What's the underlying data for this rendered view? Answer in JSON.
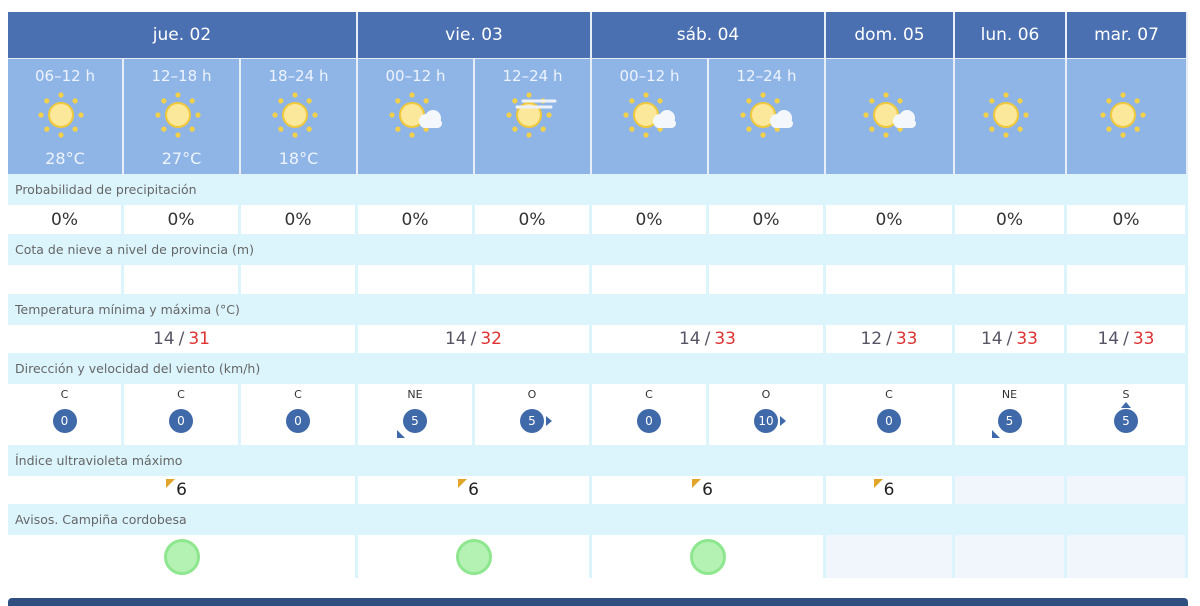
{
  "days": [
    {
      "label": "jue. 02",
      "span": 3,
      "minmax": {
        "min": "14",
        "max": "31"
      },
      "uv": "6",
      "aviso": "green"
    },
    {
      "label": "vie. 03",
      "span": 2,
      "minmax": {
        "min": "14",
        "max": "32"
      },
      "uv": "6",
      "aviso": "green"
    },
    {
      "label": "sáb. 04",
      "span": 2,
      "minmax": {
        "min": "14",
        "max": "33"
      },
      "uv": "6",
      "aviso": "green"
    },
    {
      "label": "dom. 05",
      "span": 1,
      "minmax": {
        "min": "12",
        "max": "33"
      },
      "uv": "6",
      "aviso": null
    },
    {
      "label": "lun. 06",
      "span": 1,
      "minmax": {
        "min": "14",
        "max": "33"
      },
      "uv": null,
      "aviso": null
    },
    {
      "label": "mar. 07",
      "span": 1,
      "minmax": {
        "min": "14",
        "max": "33"
      },
      "uv": null,
      "aviso": null
    }
  ],
  "periods": [
    {
      "period": "06–12 h",
      "icon": "sun-icon",
      "temp": "28°C",
      "precip": "0%",
      "wind_dir": "C",
      "wind_speed": "0"
    },
    {
      "period": "12–18 h",
      "icon": "sun-icon",
      "temp": "27°C",
      "precip": "0%",
      "wind_dir": "C",
      "wind_speed": "0"
    },
    {
      "period": "18–24 h",
      "icon": "sun-icon",
      "temp": "18°C",
      "precip": "0%",
      "wind_dir": "C",
      "wind_speed": "0"
    },
    {
      "period": "00–12 h",
      "icon": "sun-cloud-icon",
      "temp": "",
      "precip": "0%",
      "wind_dir": "NE",
      "wind_speed": "5"
    },
    {
      "period": "12–24 h",
      "icon": "sun-haze-icon",
      "temp": "",
      "precip": "0%",
      "wind_dir": "O",
      "wind_speed": "5"
    },
    {
      "period": "00–12 h",
      "icon": "sun-cloud-icon",
      "temp": "",
      "precip": "0%",
      "wind_dir": "C",
      "wind_speed": "0"
    },
    {
      "period": "12–24 h",
      "icon": "sun-cloud-icon",
      "temp": "",
      "precip": "0%",
      "wind_dir": "O",
      "wind_speed": "10"
    },
    {
      "period": "",
      "icon": "sun-cloud-icon",
      "temp": "",
      "precip": "0%",
      "wind_dir": "C",
      "wind_speed": "0"
    },
    {
      "period": "",
      "icon": "sun-icon",
      "temp": "",
      "precip": "0%",
      "wind_dir": "NE",
      "wind_speed": "5"
    },
    {
      "period": "",
      "icon": "sun-icon",
      "temp": "",
      "precip": "0%",
      "wind_dir": "S",
      "wind_speed": "5"
    }
  ],
  "labels": {
    "precip": "Probabilidad de precipitación",
    "snow": "Cota de nieve a nivel de provincia (m)",
    "temp": "Temperatura mínima y máxima (°C)",
    "wind": "Dirección y velocidad del viento (km/h)",
    "uv": "Índice ultravioleta máximo",
    "avisos": "Avisos. Campiña cordobesa"
  },
  "temp_separator": "/",
  "colors": {
    "header": "#4a70b2",
    "subheader": "#8fb5e6",
    "label_row": "#dcf5fc",
    "max_temp": "#dd3333",
    "wind_badge": "#3f69a8",
    "aviso_green": "#b4f2b4"
  }
}
